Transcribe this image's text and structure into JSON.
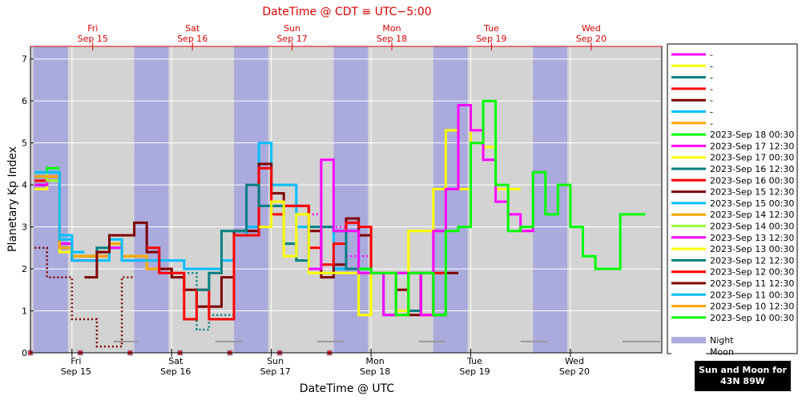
{
  "chart_data": {
    "type": "line",
    "step": true,
    "title": "DateTime @ CDT ≡ UTC−5:00",
    "xlabel": "DateTime @ UTC",
    "ylabel": "Planetary Kp Index",
    "x_start": "2023-09-14T14:00",
    "x_end": "2023-09-20T22:00",
    "ylim": [
      0,
      7.3
    ],
    "yticks": [
      0,
      1,
      2,
      3,
      4,
      5,
      6,
      7
    ],
    "grid": true,
    "legend_position": "right",
    "top_axis_ticks": [
      {
        "at": "2023-09-15T05:00",
        "day": "Fri",
        "date": "Sep 15"
      },
      {
        "at": "2023-09-16T05:00",
        "day": "Sat",
        "date": "Sep 16"
      },
      {
        "at": "2023-09-17T05:00",
        "day": "Sun",
        "date": "Sep 17"
      },
      {
        "at": "2023-09-18T05:00",
        "day": "Mon",
        "date": "Sep 18"
      },
      {
        "at": "2023-09-19T05:00",
        "day": "Tue",
        "date": "Sep 19"
      },
      {
        "at": "2023-09-20T05:00",
        "day": "Wed",
        "date": "Sep 20"
      }
    ],
    "bottom_axis_ticks": [
      {
        "at": "2023-09-15T00:00",
        "day": "Fri",
        "date": "Sep 15"
      },
      {
        "at": "2023-09-16T00:00",
        "day": "Sat",
        "date": "Sep 16"
      },
      {
        "at": "2023-09-17T00:00",
        "day": "Sun",
        "date": "Sep 17"
      },
      {
        "at": "2023-09-18T00:00",
        "day": "Mon",
        "date": "Sep 18"
      },
      {
        "at": "2023-09-19T00:00",
        "day": "Tue",
        "date": "Sep 19"
      },
      {
        "at": "2023-09-20T00:00",
        "day": "Wed",
        "date": "Sep 20"
      }
    ],
    "night_bands": [
      [
        "2023-09-14T14:45",
        "2023-09-14T23:00"
      ],
      [
        "2023-09-15T15:00",
        "2023-09-15T23:15"
      ],
      [
        "2023-09-16T15:00",
        "2023-09-16T23:15"
      ],
      [
        "2023-09-17T15:00",
        "2023-09-17T23:15"
      ],
      [
        "2023-09-18T15:00",
        "2023-09-18T23:15"
      ],
      [
        "2023-09-19T15:00",
        "2023-09-19T23:15"
      ]
    ],
    "moon_bands": [
      [
        "2023-09-15T10:00",
        "2023-09-15T16:00"
      ],
      [
        "2023-09-16T10:30",
        "2023-09-16T17:00"
      ],
      [
        "2023-09-17T11:00",
        "2023-09-17T17:30"
      ],
      [
        "2023-09-18T11:30",
        "2023-09-18T18:00"
      ],
      [
        "2023-09-19T12:00",
        "2023-09-19T18:30"
      ],
      [
        "2023-09-20T12:30",
        "2023-09-20T22:00"
      ]
    ],
    "markers": [
      "2023-09-14T14:00",
      "2023-09-15T02:00",
      "2023-09-15T14:00",
      "2023-09-16T02:00",
      "2023-09-16T14:00",
      "2023-09-17T02:00",
      "2023-09-17T14:00"
    ],
    "series": [
      {
        "name": "",
        "color": "#ff00ff",
        "dotted": false,
        "x0": "2023-09-14T14:00",
        "values": []
      },
      {
        "name": "",
        "color": "#ffff00",
        "dotted": false,
        "x0": "2023-09-14T14:00",
        "values": []
      },
      {
        "name": "",
        "color": "#008080",
        "dotted": false,
        "x0": "2023-09-14T14:00",
        "values": []
      },
      {
        "name": "",
        "color": "#ff0000",
        "dotted": false,
        "x0": "2023-09-14T14:00",
        "values": []
      },
      {
        "name": "",
        "color": "#800000",
        "dotted": false,
        "x0": "2023-09-14T14:00",
        "values": []
      },
      {
        "name": "",
        "color": "#00bfff",
        "dotted": false,
        "x0": "2023-09-14T14:00",
        "values": []
      },
      {
        "name": "",
        "color": "#ffa500",
        "dotted": false,
        "x0": "2023-09-14T14:00",
        "values": []
      },
      {
        "name": "2023-Sep 18 00:30",
        "color": "#00ff00",
        "dotted": false,
        "x0": "2023-09-17T21:00",
        "values": [
          2.0,
          1.9,
          1.9,
          0.9,
          1.9,
          1.9,
          0.9,
          2.9,
          3.0,
          5.0,
          6.0,
          4.0,
          2.9,
          3.0,
          4.3,
          3.3,
          4.0,
          3.0,
          2.3,
          2.0,
          2.0,
          3.3,
          3.3
        ]
      },
      {
        "name": "2023-Sep 17 12:30",
        "color": "#ff00ff",
        "dotted": false,
        "x0": "2023-09-17T09:00",
        "values": [
          2.0,
          4.6,
          2.9,
          2.9,
          1.9,
          1.9,
          0.9,
          1.9,
          1.9,
          0.9,
          2.9,
          3.9,
          5.9,
          5.3,
          4.6,
          3.6,
          3.3,
          2.9,
          4.3
        ]
      },
      {
        "name": "2023-Sep 17 00:30",
        "color": "#ffff00",
        "dotted": false,
        "x0": "2023-09-16T21:00",
        "values": [
          3.0,
          3.6,
          2.3,
          3.3,
          1.9,
          1.9,
          1.9,
          1.9,
          0.9,
          1.9,
          1.9,
          1.0,
          2.9,
          2.9,
          3.9,
          5.3,
          3.9,
          5.3,
          4.9,
          3.9,
          3.9
        ]
      },
      {
        "name": "2023-Sep 16 12:30",
        "color": "#008080",
        "dotted": false,
        "x0": "2023-09-16T06:00",
        "values": [
          1.5,
          1.9,
          2.9,
          2.9,
          4.0,
          3.5,
          3.5,
          2.6,
          2.2,
          3.0,
          3.0,
          2.9,
          2.0,
          2.0,
          1.9,
          0.9,
          1.9,
          1.0,
          1.9
        ]
      },
      {
        "name": "2023-Sep 16 00:30",
        "color": "#ff0000",
        "dotted": false,
        "x0": "2023-09-15T18:00",
        "values": [
          2.5,
          1.9,
          1.9,
          0.8,
          1.5,
          0.8,
          0.8,
          2.8,
          2.8,
          4.4,
          3.3,
          3.5,
          3.5,
          2.5,
          2.1,
          2.6,
          3.1,
          3.0,
          1.9,
          1.9,
          0.9,
          1.9,
          0.9,
          1.9
        ]
      },
      {
        "name": "2023-Sep 15 12:30",
        "color": "#800000",
        "dotted": false,
        "x0": "2023-09-15T03:00",
        "values": [
          1.8,
          2.4,
          2.8,
          2.8,
          3.1,
          2.4,
          2.0,
          1.8,
          1.5,
          1.1,
          1.1,
          1.8,
          2.9,
          2.9,
          4.5,
          3.8,
          3.5,
          3.5,
          2.9,
          1.8,
          2.1,
          3.2,
          2.8,
          1.9,
          1.9,
          1.5,
          0.9,
          1.9,
          0.9,
          1.9
        ]
      },
      {
        "name": "2023-Sep 15 00:30",
        "color": "#00bfff",
        "dotted": false,
        "x0": "2023-09-14T15:00",
        "values": [
          4.3,
          4.3,
          2.7,
          2.2,
          2.2,
          2.2,
          2.7,
          2.2,
          2.2,
          2.2,
          2.2,
          2.2,
          2.0,
          2.0,
          2.0,
          2.2,
          2.8,
          3.0,
          5.0,
          4.0,
          4.0,
          3.0,
          2.0,
          3.0,
          2.0
        ]
      },
      {
        "name": "2023-Sep 14 12:30",
        "color": "#ffa500",
        "dotted": false,
        "x0": "2023-09-14T15:00",
        "values": [
          4.2,
          4.2,
          2.5,
          2.3,
          2.3,
          2.3,
          2.6,
          2.3,
          2.3,
          2.0,
          2.0
        ]
      },
      {
        "name": "2023-Sep 14 00:30",
        "color": "#99ff33",
        "dotted": false,
        "x0": "2023-09-14T15:00",
        "values": [
          4.3,
          4.1,
          2.5,
          2.3,
          2.3,
          2.4,
          2.7,
          2.3,
          2.3,
          2.0
        ]
      },
      {
        "name": "2023-Sep 13 12:30",
        "color": "#ff00ff",
        "dotted": false,
        "x0": "2023-09-14T15:00",
        "values": [
          4.0,
          4.2,
          2.6,
          2.2,
          2.2,
          2.3,
          2.5,
          2.2,
          2.2
        ]
      },
      {
        "name": "2023-Sep 13 00:30",
        "color": "#ffff00",
        "dotted": false,
        "x0": "2023-09-14T15:00",
        "values": [
          3.9,
          4.1,
          2.4,
          2.2,
          2.2,
          2.2,
          2.6,
          2.2
        ]
      },
      {
        "name": "2023-Sep 12 12:30",
        "color": "#008080",
        "dotted": false,
        "x0": "2023-09-14T15:00",
        "values": [
          4.0,
          4.3,
          2.6,
          2.3,
          2.3,
          2.5,
          2.5
        ]
      },
      {
        "name": "2023-Sep 12 00:30",
        "color": "#ff0000",
        "dotted": false,
        "x0": "2023-09-14T15:00",
        "values": [
          4.1,
          4.2,
          2.5,
          2.3,
          2.3,
          2.4
        ]
      },
      {
        "name": "2023-Sep 11 12:30",
        "color": "#800000",
        "dotted": false,
        "x0": "2023-09-14T15:00",
        "values": [
          4.0,
          4.1,
          2.5,
          2.2,
          2.2
        ]
      },
      {
        "name": "2023-Sep 11 00:30",
        "color": "#00bfff",
        "dotted": false,
        "x0": "2023-09-14T15:00",
        "values": [
          4.2,
          4.3,
          2.8,
          2.4
        ]
      },
      {
        "name": "2023-Sep 10 12:30",
        "color": "#ffa500",
        "dotted": false,
        "x0": "2023-09-14T15:00",
        "values": [
          4.1,
          4.2,
          2.6
        ]
      },
      {
        "name": "2023-Sep 10 00:30",
        "color": "#00ff00",
        "dotted": false,
        "x0": "2023-09-14T15:00",
        "values": [
          4.2,
          4.4
        ]
      }
    ],
    "dotted_series": [
      {
        "color": "#800000",
        "x0": "2023-09-14T15:00",
        "values": [
          2.5,
          1.8,
          1.8,
          0.8,
          0.8,
          0.15,
          0.15,
          1.8
        ]
      },
      {
        "color": "#008080",
        "x0": "2023-09-16T00:00",
        "values": [
          1.9,
          1.9,
          0.55,
          0.9,
          0.9
        ]
      },
      {
        "color": "#ff00ff",
        "x0": "2023-09-17T06:00",
        "values": [
          3.3,
          3.3,
          3.0,
          3.0,
          2.3,
          2.3
        ]
      }
    ],
    "legend_extra": [
      {
        "name": "Night",
        "color": "#aaaadd"
      },
      {
        "name": "Moon",
        "color": "#ffffff"
      }
    ]
  },
  "sunmoon": {
    "line1": "Sun and Moon for",
    "line2": "43N 89W"
  }
}
